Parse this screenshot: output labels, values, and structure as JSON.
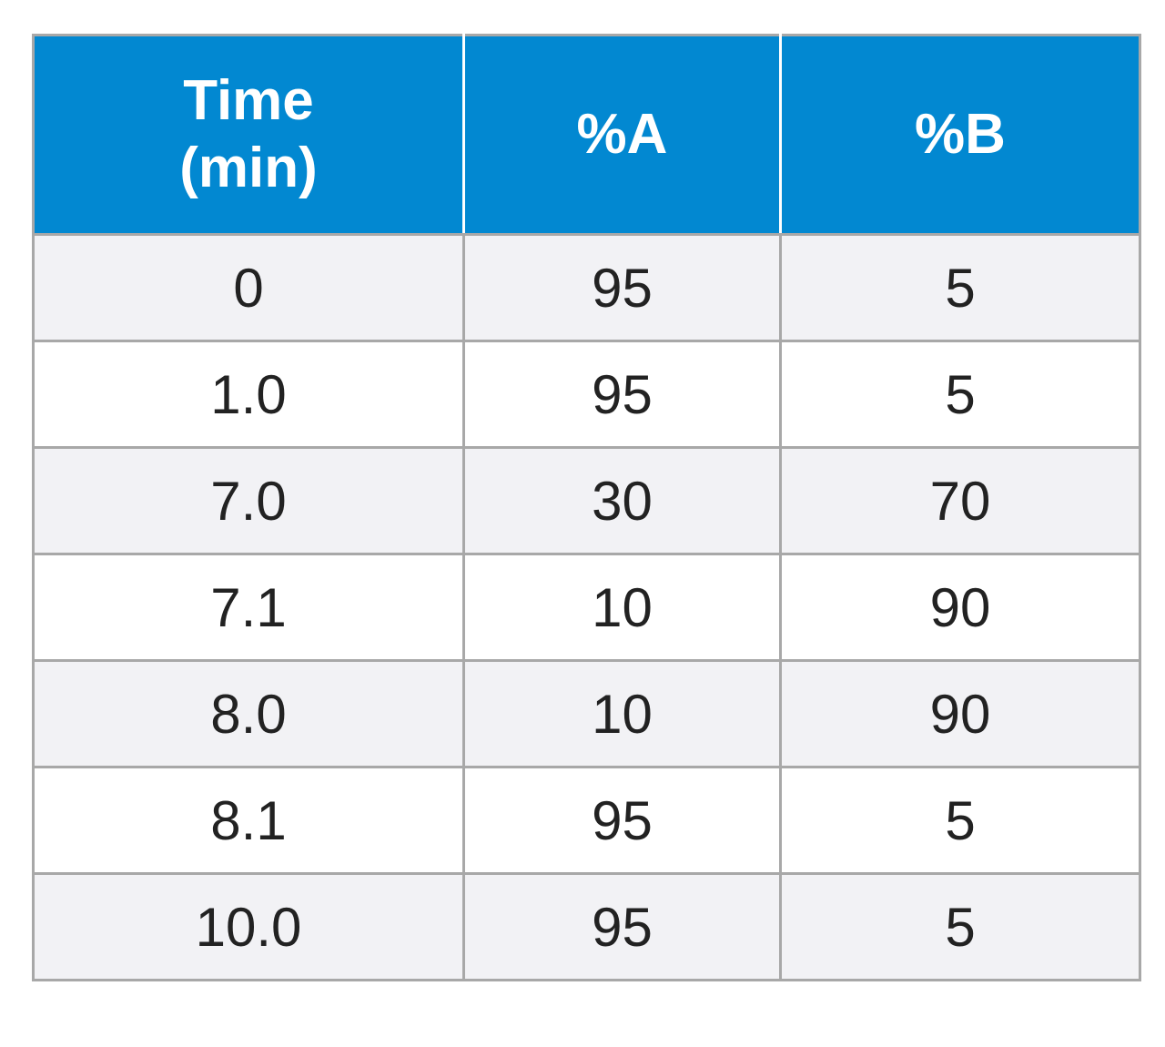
{
  "table": {
    "header": {
      "time_line1": "Time",
      "time_line2": "(min)",
      "col_a": "%A",
      "col_b": "%B"
    },
    "rows": [
      {
        "time": "0",
        "a": "95",
        "b": "5"
      },
      {
        "time": "1.0",
        "a": "95",
        "b": "5"
      },
      {
        "time": "7.0",
        "a": "30",
        "b": "70"
      },
      {
        "time": "7.1",
        "a": "10",
        "b": "90"
      },
      {
        "time": "8.0",
        "a": "10",
        "b": "90"
      },
      {
        "time": "8.1",
        "a": "95",
        "b": "5"
      },
      {
        "time": "10.0",
        "a": "95",
        "b": "5"
      }
    ],
    "colors": {
      "header_bg": "#0288d1",
      "header_text": "#ffffff",
      "row_alt_bg": "#f2f2f5",
      "border": "#a8a8a8"
    }
  }
}
